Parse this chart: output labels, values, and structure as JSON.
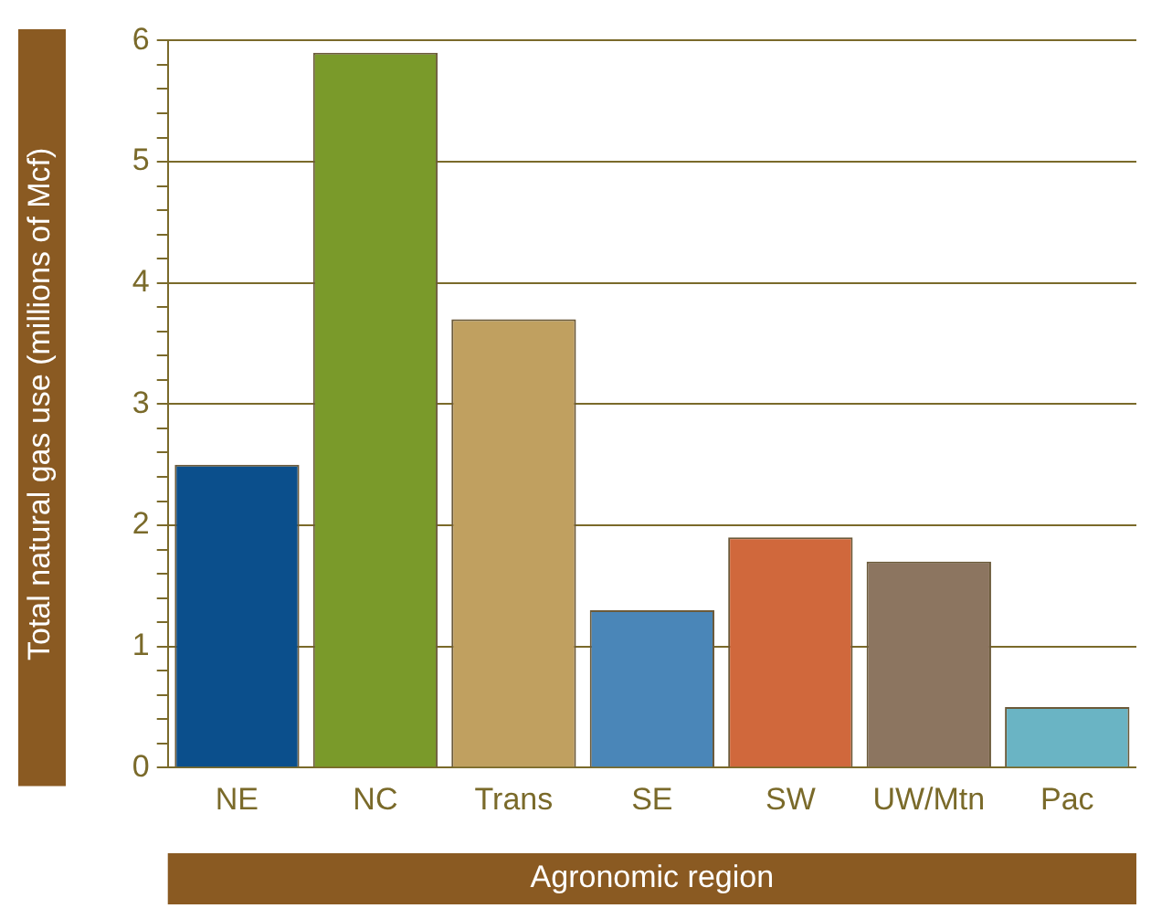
{
  "chart_data": {
    "type": "bar",
    "xlabel": "Agronomic region",
    "ylabel": "Total natural gas use (millions of Mcf)",
    "categories": [
      "NE",
      "NC",
      "Trans",
      "SE",
      "SW",
      "UW/Mtn",
      "Pac"
    ],
    "values": [
      2.5,
      5.9,
      3.7,
      1.3,
      1.9,
      1.7,
      0.5
    ],
    "colors": [
      "#0b4f8c",
      "#7a9a2a",
      "#c0a060",
      "#4a86b8",
      "#d0683c",
      "#8c7560",
      "#6ab4c4"
    ],
    "ylim": [
      0,
      6
    ],
    "yticks": [
      0,
      {
        "value": 0.2,
        "label": null
      },
      {
        "value": 0.4,
        "label": null
      },
      {
        "value": 0.6,
        "label": null
      },
      {
        "value": 0.8,
        "label": null
      },
      1,
      {
        "value": 1.2,
        "label": null
      },
      {
        "value": 1.4,
        "label": null
      },
      {
        "value": 1.6,
        "label": null
      },
      {
        "value": 1.8,
        "label": null
      },
      2,
      {
        "value": 2.2,
        "label": null
      },
      {
        "value": 2.4,
        "label": null
      },
      {
        "value": 2.6,
        "label": null
      },
      {
        "value": 2.8,
        "label": null
      },
      3,
      {
        "value": 3.2,
        "label": null
      },
      {
        "value": 3.4,
        "label": null
      },
      {
        "value": 3.6,
        "label": null
      },
      {
        "value": 3.8,
        "label": null
      },
      4,
      {
        "value": 4.2,
        "label": null
      },
      {
        "value": 4.4,
        "label": null
      },
      {
        "value": 4.6,
        "label": null
      },
      {
        "value": 4.8,
        "label": null
      },
      5,
      {
        "value": 5.2,
        "label": null
      },
      {
        "value": 5.4,
        "label": null
      },
      {
        "value": 5.6,
        "label": null
      },
      {
        "value": 5.8,
        "label": null
      },
      6
    ],
    "grid": "y"
  }
}
